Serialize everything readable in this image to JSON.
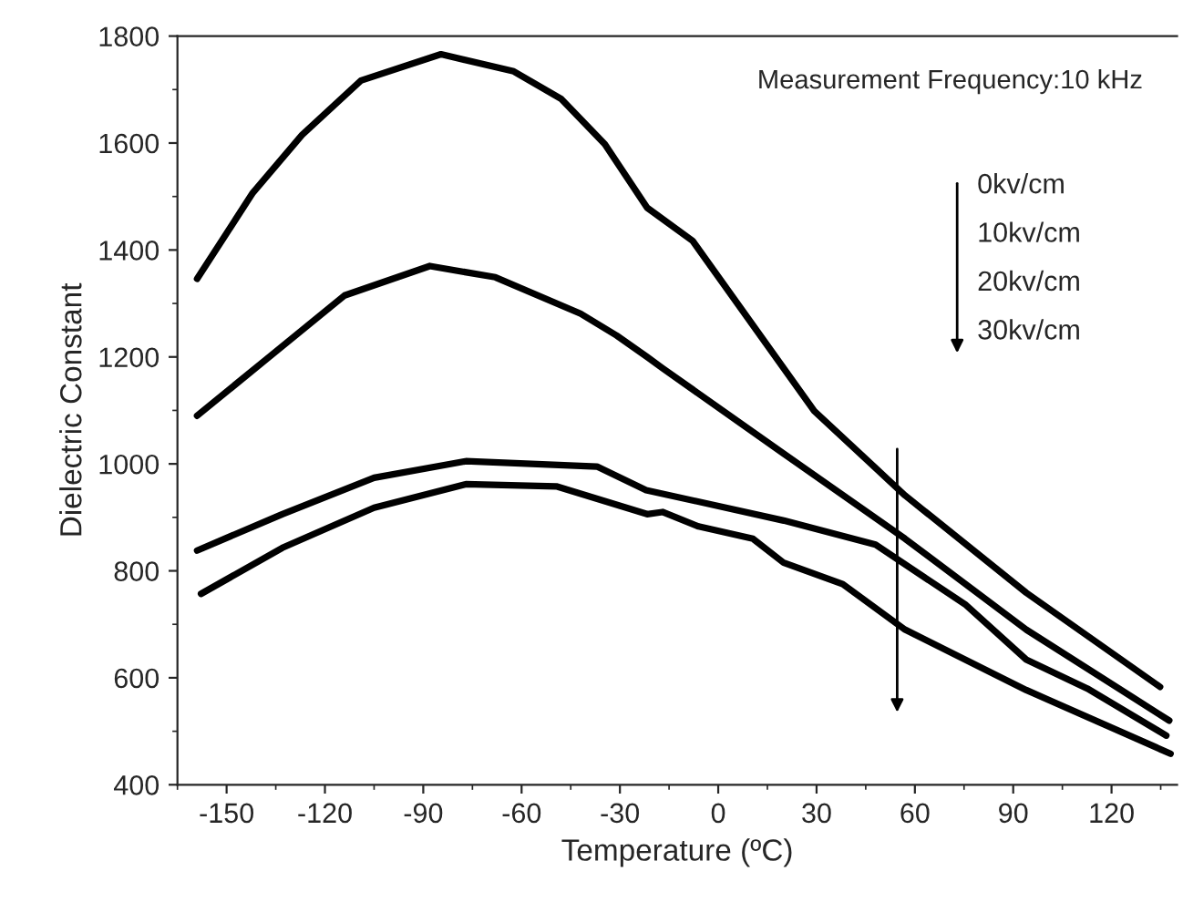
{
  "chart_data": {
    "type": "line",
    "xlabel": "Temperature (ºC)",
    "ylabel": "Dielectric Constant",
    "xlim": [
      -165,
      140
    ],
    "ylim": [
      400,
      1800
    ],
    "xticks": [
      -150,
      -120,
      -90,
      -60,
      -30,
      0,
      30,
      60,
      90,
      120
    ],
    "yticks": [
      400,
      600,
      800,
      1000,
      1200,
      1400,
      1600,
      1800
    ],
    "grid": false,
    "legend": false,
    "marker": "none",
    "line_style": "solid",
    "annotations": [
      "Measurement Frequency:10 kHz",
      "0kv/cm",
      "10kv/cm",
      "20kv/cm",
      "30kv/cm"
    ],
    "series": [
      {
        "color": "#000000",
        "x": [
          -159,
          -142,
          -127,
          -109,
          -84.6,
          -62.4,
          -48,
          -34.6,
          -21.7,
          -7.8,
          29.3,
          57,
          94,
          134.8
        ],
        "values": [
          1346,
          1507,
          1615,
          1717,
          1766,
          1734,
          1683,
          1598,
          1479,
          1417,
          1099,
          941,
          759,
          583
        ]
      },
      {
        "color": "#000000",
        "x": [
          -159,
          -137,
          -114,
          -88,
          -68,
          -42,
          -31,
          -21.7,
          -17,
          20,
          57,
          94,
          137.6
        ],
        "values": [
          1090,
          1200,
          1315,
          1370,
          1349,
          1281,
          1240,
          1200,
          1179,
          1019,
          860,
          690,
          520
        ]
      },
      {
        "color": "#000000",
        "x": [
          -159,
          -133,
          -105,
          -77,
          -37,
          -22,
          20,
          48,
          75.6,
          94,
          112.6,
          136.7
        ],
        "values": [
          838,
          906,
          974,
          1005,
          995,
          951,
          894,
          849,
          736,
          634,
          580,
          492
        ]
      },
      {
        "color": "#000000",
        "x": [
          -157.8,
          -133,
          -105,
          -77,
          -49.4,
          -21.7,
          -17,
          -6,
          10.6,
          20,
          38,
          57,
          94,
          138
        ],
        "values": [
          757,
          843,
          918,
          962,
          958,
          906,
          910,
          883,
          860,
          815,
          775,
          690,
          577,
          458
        ]
      }
    ]
  }
}
